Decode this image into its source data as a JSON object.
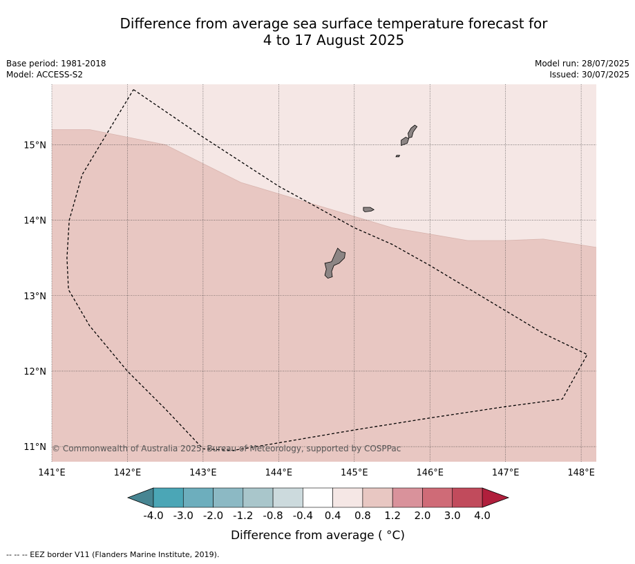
{
  "title": {
    "line1": "Difference from average sea surface temperature forecast for",
    "line2": "4 to 17 August 2025"
  },
  "meta": {
    "base_period": "Base period: 1981-2018",
    "model": "Model: ACCESS-S2",
    "model_run": "Model run: 28/07/2025",
    "issued": "Issued: 30/07/2025"
  },
  "map": {
    "lon_range": [
      141.0,
      148.2
    ],
    "lat_range": [
      10.8,
      15.8
    ],
    "lon_ticks": [
      141,
      142,
      143,
      144,
      145,
      146,
      147,
      148
    ],
    "lon_tick_labels": [
      "141°E",
      "142°E",
      "143°E",
      "144°E",
      "145°E",
      "146°E",
      "147°E",
      "148°E"
    ],
    "lat_ticks": [
      11,
      12,
      13,
      14,
      15
    ],
    "lat_tick_labels": [
      "11°N",
      "12°N",
      "13°N",
      "14°N",
      "15°N"
    ],
    "grid": true,
    "anomaly_regions": [
      {
        "range": "0.4 to 0.8",
        "color": "#f5e7e5"
      },
      {
        "range": "0.8 to 1.2",
        "color": "#e8c7c2"
      }
    ],
    "boundary_0_8_lonlat": [
      [
        141.0,
        15.2
      ],
      [
        141.5,
        15.2
      ],
      [
        142.5,
        15.0
      ],
      [
        143.5,
        14.5
      ],
      [
        144.5,
        14.2
      ],
      [
        145.5,
        13.9
      ],
      [
        146.5,
        13.73
      ],
      [
        147.0,
        13.73
      ],
      [
        147.5,
        13.75
      ],
      [
        148.2,
        13.64
      ]
    ],
    "eez_border_lonlat": [
      [
        142.08,
        15.73
      ],
      [
        143.0,
        15.1
      ],
      [
        144.0,
        14.45
      ],
      [
        145.0,
        13.9
      ],
      [
        145.5,
        13.68
      ],
      [
        146.0,
        13.4
      ],
      [
        146.5,
        13.1
      ],
      [
        147.0,
        12.8
      ],
      [
        147.5,
        12.5
      ],
      [
        148.08,
        12.22
      ],
      [
        147.75,
        11.63
      ],
      [
        147.0,
        11.53
      ],
      [
        146.0,
        11.38
      ],
      [
        145.0,
        11.22
      ],
      [
        144.0,
        11.05
      ],
      [
        143.4,
        10.95
      ],
      [
        143.0,
        10.97
      ],
      [
        142.5,
        11.5
      ],
      [
        142.0,
        12.0
      ],
      [
        141.5,
        12.6
      ],
      [
        141.22,
        13.08
      ],
      [
        141.2,
        13.5
      ],
      [
        141.23,
        14.0
      ],
      [
        141.4,
        14.6
      ],
      [
        141.7,
        15.1
      ],
      [
        142.08,
        15.73
      ]
    ],
    "islands_lonlat": [
      [
        [
          144.78,
          13.63
        ],
        [
          144.83,
          13.58
        ],
        [
          144.88,
          13.57
        ],
        [
          144.87,
          13.5
        ],
        [
          144.8,
          13.43
        ],
        [
          144.73,
          13.4
        ],
        [
          144.7,
          13.32
        ],
        [
          144.71,
          13.25
        ],
        [
          144.65,
          13.23
        ],
        [
          144.61,
          13.27
        ],
        [
          144.63,
          13.35
        ],
        [
          144.61,
          13.43
        ],
        [
          144.7,
          13.45
        ],
        [
          144.73,
          13.52
        ]
      ],
      [
        [
          145.12,
          14.17
        ],
        [
          145.21,
          14.17
        ],
        [
          145.26,
          14.14
        ],
        [
          145.22,
          14.12
        ],
        [
          145.14,
          14.11
        ],
        [
          145.12,
          14.13
        ]
      ],
      [
        [
          145.62,
          14.99
        ],
        [
          145.7,
          15.02
        ],
        [
          145.72,
          15.08
        ],
        [
          145.68,
          15.1
        ],
        [
          145.62,
          15.06
        ]
      ],
      [
        [
          145.72,
          15.09
        ],
        [
          145.76,
          15.1
        ],
        [
          145.78,
          15.17
        ],
        [
          145.83,
          15.24
        ],
        [
          145.8,
          15.26
        ],
        [
          145.75,
          15.22
        ],
        [
          145.71,
          15.15
        ]
      ],
      [
        [
          145.56,
          14.86
        ],
        [
          145.6,
          14.86
        ],
        [
          145.59,
          14.84
        ],
        [
          145.55,
          14.84
        ]
      ]
    ],
    "copyright": "© Commonwealth of Australia 2025, Bureau of Meteorology, supported by COSPPac"
  },
  "colorbar": {
    "label": "Difference from average ( °C)",
    "tick_labels": [
      "-4.0",
      "-3.0",
      "-2.0",
      "-1.2",
      "-0.8",
      "-0.4",
      "0.4",
      "0.8",
      "1.2",
      "2.0",
      "3.0",
      "4.0"
    ],
    "colors": [
      "#4ba6b6",
      "#6daebd",
      "#8cb9c4",
      "#a9c6cb",
      "#ccdadd",
      "#ffffff",
      "#f5e7e5",
      "#e8c7c2",
      "#d9929b",
      "#cf6b77",
      "#c14b5c"
    ],
    "under_color": "#478592",
    "over_color": "#b01f3c"
  },
  "footer": {
    "legend": "-- -- -- EEZ border V11 (Flanders Marine Institute, 2019)."
  },
  "colors": {
    "land": "#8c8584",
    "grid": "#333333"
  }
}
